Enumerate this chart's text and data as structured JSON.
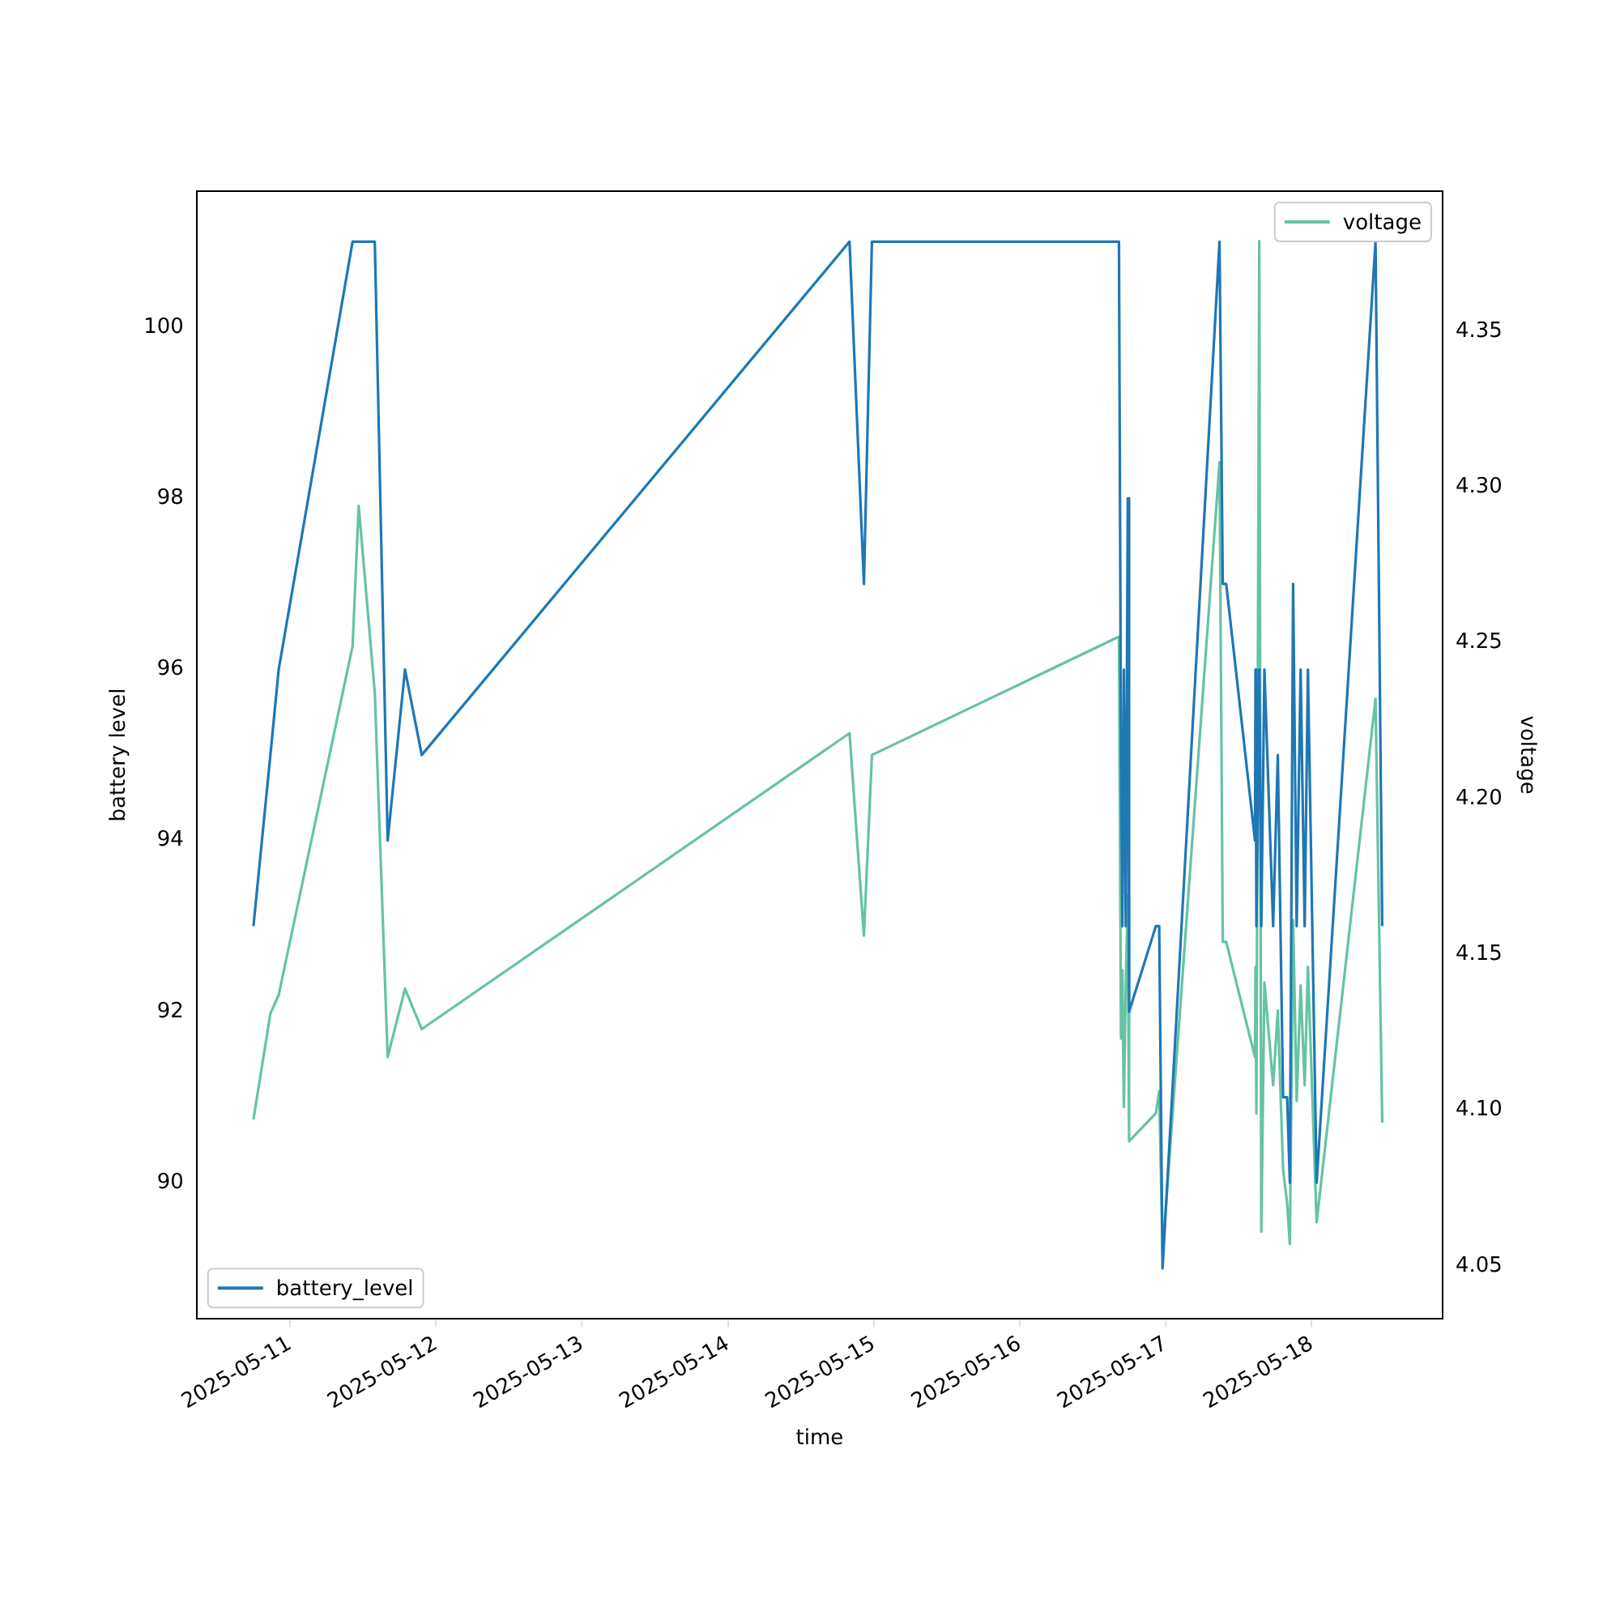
{
  "chart_data": {
    "type": "line",
    "xlabel": "time",
    "ylabel": "battery level",
    "y2label": "voltage",
    "x": [
      "2025-05-10T18:00",
      "2025-05-10T20:47",
      "2025-05-10T22:09",
      "2025-05-11T10:18",
      "2025-05-11T11:18",
      "2025-05-11T13:57",
      "2025-05-11T16:04",
      "2025-05-11T18:55",
      "2025-05-11T21:40",
      "2025-05-14T20:00",
      "2025-05-14T22:22",
      "2025-05-14T23:41",
      "2025-05-16T16:18",
      "2025-05-16T16:38",
      "2025-05-16T16:52",
      "2025-05-16T17:06",
      "2025-05-16T17:25",
      "2025-05-16T17:45",
      "2025-05-16T17:58",
      "2025-05-16T22:22",
      "2025-05-16T22:55",
      "2025-05-16T23:28",
      "2025-05-17T08:50",
      "2025-05-17T09:22",
      "2025-05-17T09:56",
      "2025-05-17T14:40",
      "2025-05-17T14:45",
      "2025-05-17T14:54",
      "2025-05-17T15:22",
      "2025-05-17T15:42",
      "2025-05-17T16:13",
      "2025-05-17T17:39",
      "2025-05-17T18:25",
      "2025-05-17T19:17",
      "2025-05-17T19:57",
      "2025-05-17T20:24",
      "2025-05-17T20:56",
      "2025-05-17T21:31",
      "2025-05-17T22:10",
      "2025-05-17T22:50",
      "2025-05-17T23:22",
      "2025-05-18T00:48",
      "2025-05-18T10:29",
      "2025-05-18T11:35"
    ],
    "series": [
      {
        "name": "battery_level",
        "color": "#1f77b4",
        "values": [
          93,
          95,
          96,
          101,
          101,
          101,
          94,
          96,
          95,
          101,
          97,
          101,
          101,
          95,
          93,
          96,
          93,
          98,
          92,
          93,
          93,
          89,
          101,
          97,
          97,
          94,
          96,
          93,
          96,
          93,
          96,
          93,
          95,
          91,
          91,
          90,
          97,
          93,
          96,
          93,
          96,
          90,
          101,
          93
        ]
      },
      {
        "name": "voltage",
        "color": "#66c2a5",
        "axis": "y2",
        "values": [
          4.097,
          4.131,
          4.137,
          4.249,
          4.294,
          4.234,
          4.117,
          4.139,
          4.126,
          4.221,
          4.156,
          4.214,
          4.252,
          4.123,
          4.145,
          4.101,
          4.14,
          4.169,
          4.09,
          4.099,
          4.106,
          4.054,
          4.308,
          4.154,
          4.154,
          4.117,
          4.146,
          4.099,
          4.379,
          4.061,
          4.141,
          4.108,
          4.132,
          4.081,
          4.07,
          4.057,
          4.161,
          4.103,
          4.14,
          4.108,
          4.146,
          4.064,
          4.232,
          4.096
        ]
      }
    ],
    "xlim": [
      "2025-05-10T08:40",
      "2025-05-18T21:30"
    ],
    "xticks": [
      "2025-05-11",
      "2025-05-12",
      "2025-05-13",
      "2025-05-14",
      "2025-05-15",
      "2025-05-16",
      "2025-05-17",
      "2025-05-18"
    ],
    "ylim": [
      88.41,
      101.59
    ],
    "yticks": [
      90,
      92,
      94,
      96,
      98,
      100
    ],
    "y2lim": [
      4.033,
      4.395
    ],
    "y2ticks": [
      {
        "value": 4.05,
        "label": "4.05"
      },
      {
        "value": 4.1,
        "label": "4.10"
      },
      {
        "value": 4.15,
        "label": "4.15"
      },
      {
        "value": 4.2,
        "label": "4.20"
      },
      {
        "value": 4.25,
        "label": "4.25"
      },
      {
        "value": 4.3,
        "label": "4.30"
      },
      {
        "value": 4.35,
        "label": "4.35"
      }
    ],
    "legend": "bottom left",
    "grid": false,
    "marker": "none",
    "line_style": "solid"
  }
}
